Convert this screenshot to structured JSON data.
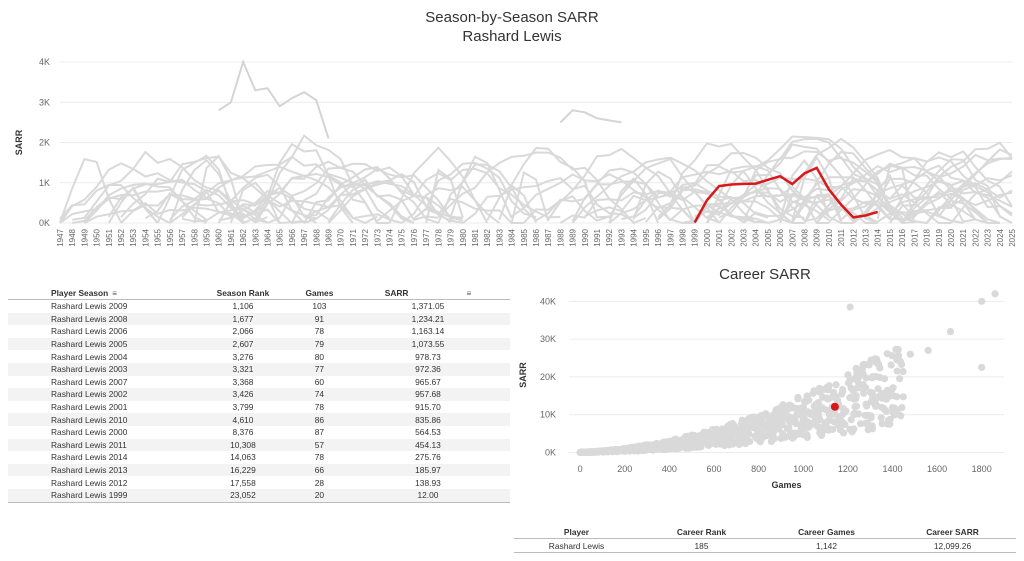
{
  "title": {
    "line1": "Season-by-Season SARR",
    "line2": "Rashard Lewis"
  },
  "colors": {
    "highlight": "#d7191c",
    "background_lines": "#d6d6d6",
    "axis_text": "#666666"
  },
  "chart_data": [
    {
      "type": "line",
      "title": "Season-by-Season SARR",
      "subtitle": "Rashard Lewis",
      "xlabel": "",
      "ylabel": "SARR",
      "x_range": [
        1947,
        2025
      ],
      "ylim": [
        0,
        4000
      ],
      "y_ticks": [
        "0K",
        "1K",
        "2K",
        "3K",
        "4K"
      ],
      "grid": "horizontal",
      "series": [
        {
          "name": "Rashard Lewis",
          "x": [
            1999,
            2000,
            2001,
            2002,
            2003,
            2004,
            2005,
            2006,
            2007,
            2008,
            2009,
            2010,
            2011,
            2012,
            2013,
            2014
          ],
          "values": [
            12.0,
            564.53,
            915.7,
            957.68,
            972.36,
            978.73,
            1073.55,
            1163.14,
            965.67,
            1234.21,
            1371.05,
            835.86,
            454.13,
            138.93,
            185.97,
            275.76
          ]
        }
      ]
    },
    {
      "type": "scatter",
      "title": "Career SARR",
      "xlabel": "Games",
      "ylabel": "SARR",
      "xlim": [
        -50,
        1900
      ],
      "ylim": [
        -2000,
        43000
      ],
      "x_ticks": [
        "0",
        "200",
        "400",
        "600",
        "800",
        "1000",
        "1200",
        "1400",
        "1600",
        "1800"
      ],
      "y_ticks": [
        "0K",
        "10K",
        "20K",
        "30K",
        "40K"
      ],
      "highlight": {
        "name": "Rashard Lewis",
        "x": 1142,
        "y": 12099.26
      }
    }
  ],
  "season_table": {
    "headers": {
      "player_season": "Player Season",
      "season_rank": "Season Rank",
      "games": "Games",
      "sarr": "SARR"
    },
    "rows": [
      {
        "player_season": "Rashard Lewis 2009",
        "season_rank": "1,106",
        "games": "103",
        "sarr": "1,371.05"
      },
      {
        "player_season": "Rashard Lewis 2008",
        "season_rank": "1,677",
        "games": "91",
        "sarr": "1,234.21"
      },
      {
        "player_season": "Rashard Lewis 2006",
        "season_rank": "2,066",
        "games": "78",
        "sarr": "1,163.14"
      },
      {
        "player_season": "Rashard Lewis 2005",
        "season_rank": "2,607",
        "games": "79",
        "sarr": "1,073.55"
      },
      {
        "player_season": "Rashard Lewis 2004",
        "season_rank": "3,276",
        "games": "80",
        "sarr": "978.73"
      },
      {
        "player_season": "Rashard Lewis 2003",
        "season_rank": "3,321",
        "games": "77",
        "sarr": "972.36"
      },
      {
        "player_season": "Rashard Lewis 2007",
        "season_rank": "3,368",
        "games": "60",
        "sarr": "965.67"
      },
      {
        "player_season": "Rashard Lewis 2002",
        "season_rank": "3,426",
        "games": "74",
        "sarr": "957.68"
      },
      {
        "player_season": "Rashard Lewis 2001",
        "season_rank": "3,799",
        "games": "78",
        "sarr": "915.70"
      },
      {
        "player_season": "Rashard Lewis 2010",
        "season_rank": "4,610",
        "games": "86",
        "sarr": "835.86"
      },
      {
        "player_season": "Rashard Lewis 2000",
        "season_rank": "8,376",
        "games": "87",
        "sarr": "564.53"
      },
      {
        "player_season": "Rashard Lewis 2011",
        "season_rank": "10,308",
        "games": "57",
        "sarr": "454.13"
      },
      {
        "player_season": "Rashard Lewis 2014",
        "season_rank": "14,063",
        "games": "78",
        "sarr": "275.76"
      },
      {
        "player_season": "Rashard Lewis 2013",
        "season_rank": "16,229",
        "games": "66",
        "sarr": "185.97"
      },
      {
        "player_season": "Rashard Lewis 2012",
        "season_rank": "17,558",
        "games": "28",
        "sarr": "138.93"
      },
      {
        "player_season": "Rashard Lewis 1999",
        "season_rank": "23,052",
        "games": "20",
        "sarr": "12.00"
      }
    ]
  },
  "career_table": {
    "headers": {
      "player": "Player",
      "career_rank": "Career Rank",
      "career_games": "Career Games",
      "career_sarr": "Career SARR"
    },
    "row": {
      "player": "Rashard Lewis",
      "career_rank": "185",
      "career_games": "1,142",
      "career_sarr": "12,099.26"
    }
  }
}
